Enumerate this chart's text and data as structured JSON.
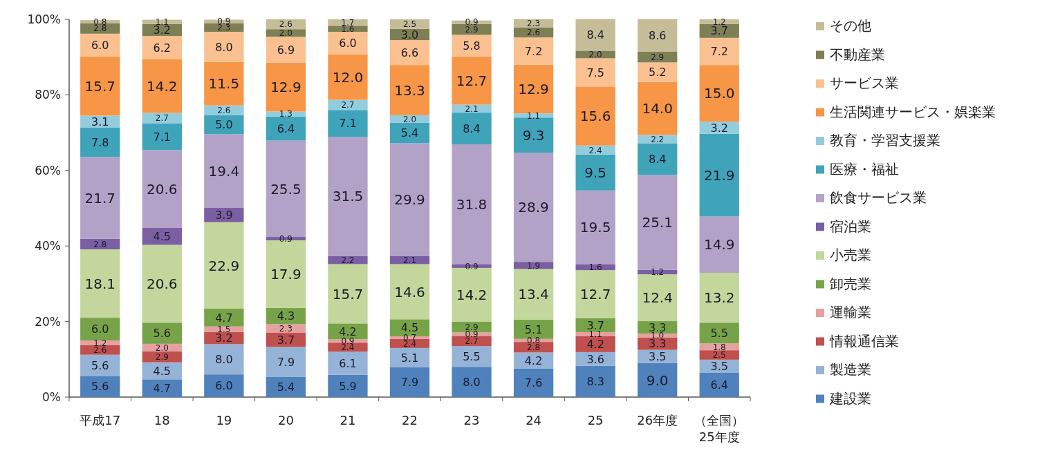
{
  "chart_data": {
    "type": "bar",
    "stacked": true,
    "categories": [
      "平成17",
      "18",
      "19",
      "20",
      "21",
      "22",
      "23",
      "24",
      "25",
      "26年度",
      "（全国）\n25年度"
    ],
    "ylim": [
      0,
      100
    ],
    "yticks": [
      {
        "value": 0,
        "label": "0%"
      },
      {
        "value": 20,
        "label": "20%"
      },
      {
        "value": 40,
        "label": "40%"
      },
      {
        "value": 60,
        "label": "60%"
      },
      {
        "value": 80,
        "label": "80%"
      },
      {
        "value": 100,
        "label": "100%"
      }
    ],
    "legend": "right",
    "grid": false,
    "series": [
      {
        "name": "建設業",
        "color": "#4f81bd",
        "values": [
          5.6,
          4.7,
          6.0,
          5.4,
          5.9,
          7.9,
          8.0,
          7.6,
          8.3,
          9.0,
          6.4
        ],
        "value_labels": [
          "5.6",
          "4.7",
          "6.0",
          "5.4",
          "5.9",
          "7.9",
          "8.0",
          "7.6",
          "8.3",
          "9.0",
          "6.4"
        ]
      },
      {
        "name": "製造業",
        "color": "#95b3d7",
        "values": [
          5.6,
          4.5,
          8.0,
          7.9,
          6.1,
          5.1,
          5.5,
          4.2,
          3.6,
          3.5,
          3.5
        ],
        "value_labels": [
          "5.6",
          "4.5",
          "8.0",
          "7.9",
          "6.1",
          "5.1",
          "5.5",
          "4.2",
          "3.6",
          "3.5",
          "3.5"
        ]
      },
      {
        "name": "情報通信業",
        "color": "#c0504d",
        "values": [
          2.6,
          2.9,
          3.2,
          3.7,
          2.4,
          2.4,
          2.7,
          2.8,
          4.2,
          3.3,
          2.5
        ],
        "value_labels": [
          "2.6",
          "2.9",
          "3.2",
          "3.7",
          "2.4",
          "2.4",
          "2.7",
          "2.8",
          "4.2",
          "3.3",
          "2.5"
        ]
      },
      {
        "name": "運輸業",
        "color": "#e6a0a0",
        "values": [
          1.2,
          2.0,
          1.5,
          2.3,
          0.9,
          0.7,
          0.9,
          0.8,
          1.1,
          1.0,
          1.8
        ],
        "value_labels": [
          "1.2",
          "2.0",
          "1.5",
          "2.3",
          "0.9",
          "0.7",
          "0.9",
          "0.8",
          "1.1",
          "1.0",
          "1.8"
        ]
      },
      {
        "name": "卸売業",
        "color": "#77a348",
        "values": [
          6.0,
          5.6,
          4.7,
          4.3,
          4.2,
          4.5,
          2.9,
          5.1,
          3.7,
          3.3,
          5.5
        ],
        "value_labels": [
          "6.0",
          "5.6",
          "4.7",
          "4.3",
          "4.2",
          "4.5",
          "2.9",
          "5.1",
          "3.7",
          "3.3",
          "5.5"
        ]
      },
      {
        "name": "小売業",
        "color": "#c3d69b",
        "values": [
          18.1,
          20.6,
          22.9,
          17.9,
          15.7,
          14.6,
          14.2,
          13.4,
          12.7,
          12.4,
          13.2
        ],
        "value_labels": [
          "18.1",
          "20.6",
          "22.9",
          "17.9",
          "15.7",
          "14.6",
          "14.2",
          "13.4",
          "12.7",
          "12.4",
          "13.2"
        ]
      },
      {
        "name": "宿泊業",
        "color": "#7b5fa3",
        "values": [
          2.8,
          4.5,
          3.9,
          0.9,
          2.2,
          2.1,
          0.9,
          1.9,
          1.6,
          1.2,
          null
        ],
        "value_labels": [
          "2.8",
          "4.5",
          "3.9",
          "0.9",
          "2.2",
          "2.1",
          "0.9",
          "1.9",
          "1.6",
          "1.2",
          null
        ]
      },
      {
        "name": "飲食サービス業",
        "color": "#b3a2c7",
        "values": [
          21.7,
          20.6,
          19.4,
          25.5,
          31.5,
          29.9,
          31.8,
          28.9,
          19.5,
          25.1,
          14.9
        ],
        "value_labels": [
          "21.7",
          "20.6",
          "19.4",
          "25.5",
          "31.5",
          "29.9",
          "31.8",
          "28.9",
          "19.5",
          "25.1",
          "14.9"
        ]
      },
      {
        "name": "医療・福祉",
        "color": "#3fa4ba",
        "values": [
          7.8,
          7.1,
          5.0,
          6.4,
          7.1,
          5.4,
          8.4,
          9.3,
          9.5,
          8.4,
          21.9
        ],
        "value_labels": [
          "7.8",
          "7.1",
          "5.0",
          "6.4",
          "7.1",
          "5.4",
          "8.4",
          "9.3",
          "9.5",
          "8.4",
          "21.9"
        ]
      },
      {
        "name": "教育・学習支援業",
        "color": "#93cddd",
        "values": [
          3.1,
          2.7,
          2.6,
          1.3,
          2.7,
          2.0,
          2.1,
          1.1,
          2.4,
          2.2,
          3.2
        ],
        "value_labels": [
          "3.1",
          "2.7",
          "2.6",
          "1.3",
          "2.7",
          "2.0",
          "2.1",
          "1.1",
          "2.4",
          "2.2",
          "3.2"
        ]
      },
      {
        "name": "生活関連サービス・娯楽業",
        "color": "#f79646",
        "values": [
          15.7,
          14.2,
          11.5,
          12.9,
          12.0,
          13.3,
          12.7,
          12.9,
          15.6,
          14.0,
          15.0
        ],
        "value_labels": [
          "15.7",
          "14.2",
          "11.5",
          "12.9",
          "12.0",
          "13.3",
          "12.7",
          "12.9",
          "15.6",
          "14.0",
          "15.0"
        ]
      },
      {
        "name": "サービス業",
        "color": "#fac090",
        "values": [
          6.0,
          6.2,
          8.0,
          6.9,
          6.0,
          6.6,
          5.8,
          7.2,
          7.5,
          5.2,
          7.2
        ],
        "value_labels": [
          "6.0",
          "6.2",
          "8.0",
          "6.9",
          "6.0",
          "6.6",
          "5.8",
          "7.2",
          "7.5",
          "5.2",
          "7.2"
        ]
      },
      {
        "name": "不動産業",
        "color": "#7f7f55",
        "values": [
          2.8,
          3.2,
          2.3,
          2.0,
          1.6,
          3.0,
          2.9,
          2.6,
          2.0,
          2.9,
          3.7
        ],
        "value_labels": [
          "2.8",
          "3.2",
          "2.3",
          "2.0",
          "1.6",
          "3.0",
          "2.9",
          "2.6",
          "2.0",
          "2.9",
          "3.7"
        ]
      },
      {
        "name": "その他",
        "color": "#c4bd97",
        "values": [
          0.8,
          1.1,
          0.9,
          2.6,
          1.7,
          2.5,
          0.9,
          2.3,
          8.4,
          8.6,
          1.2
        ],
        "value_labels": [
          "0.8",
          "1.1",
          "0.9",
          "2.6",
          "1.7",
          "2.5",
          "0.9",
          "2.3",
          "8.4",
          "8.6",
          "1.2"
        ]
      }
    ]
  }
}
